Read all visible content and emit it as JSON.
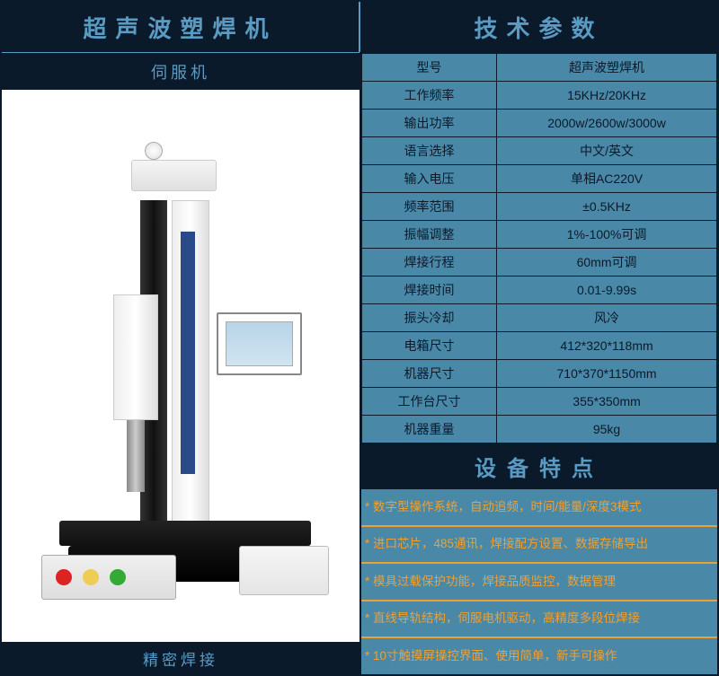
{
  "header": {
    "left_title": "超声波塑焊机",
    "right_title": "技术参数"
  },
  "left_panel": {
    "subtitle": "伺服机",
    "footer": "精密焊接"
  },
  "specs": {
    "rows": [
      {
        "label": "型号",
        "value": "超声波塑焊机"
      },
      {
        "label": "工作频率",
        "value": "15KHz/20KHz"
      },
      {
        "label": "输出功率",
        "value": "2000w/2600w/3000w"
      },
      {
        "label": "语言选择",
        "value": "中文/英文"
      },
      {
        "label": "输入电压",
        "value": "单相AC220V"
      },
      {
        "label": "频率范围",
        "value": "±0.5KHz"
      },
      {
        "label": "振幅调整",
        "value": "1%-100%可调"
      },
      {
        "label": "焊接行程",
        "value": "60mm可调"
      },
      {
        "label": "焊接时间",
        "value": "0.01-9.99s"
      },
      {
        "label": "振头冷却",
        "value": "风冷"
      },
      {
        "label": "电箱尺寸",
        "value": "412*320*118mm"
      },
      {
        "label": "机器尺寸",
        "value": "710*370*1150mm"
      },
      {
        "label": "工作台尺寸",
        "value": "355*350mm"
      },
      {
        "label": "机器重量",
        "value": "95kg"
      }
    ]
  },
  "features": {
    "title": "设备特点",
    "items": [
      "* 数字型操作系统，自动追频，时间/能量/深度3模式",
      "* 进口芯片，485通讯，焊接配方设置、数据存储导出",
      "* 模具过载保护功能，焊接品质监控，数据管理",
      "*  直线导轨结构，伺服电机驱动，高精度多段位焊接",
      "* 10寸触摸屏操控界面、使用简单，新手可操作"
    ]
  },
  "colors": {
    "dark": "#0a1a2a",
    "accent_text": "#5a9bc4",
    "cell_bg": "#4a88a8",
    "feature_text": "#f0a030",
    "feature_divider": "#f0a030"
  }
}
